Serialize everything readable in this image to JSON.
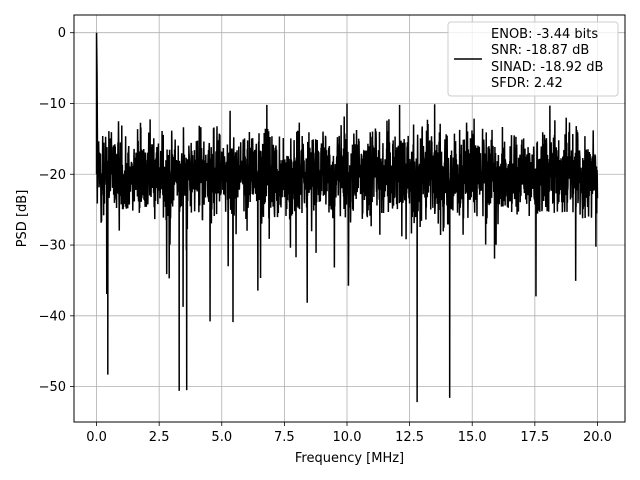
{
  "chart_data": {
    "type": "line",
    "title": "",
    "xlabel": "Frequency [MHz]",
    "ylabel": "PSD [dB]",
    "xlim": [
      -0.9,
      21.1
    ],
    "ylim": [
      -55,
      2.5
    ],
    "xticks": [
      0.0,
      2.5,
      5.0,
      7.5,
      10.0,
      12.5,
      15.0,
      17.5,
      20.0
    ],
    "xtick_labels": [
      "0.0",
      "2.5",
      "5.0",
      "7.5",
      "10.0",
      "12.5",
      "15.0",
      "17.5",
      "20.0"
    ],
    "yticks": [
      0,
      -10,
      -20,
      -30,
      -40,
      -50
    ],
    "ytick_labels": [
      "0",
      "−10",
      "−20",
      "−30",
      "−40",
      "−50"
    ],
    "grid": true,
    "legend_position": "top-right",
    "line_color": "#000000",
    "series": [
      {
        "legend_lines": [
          "ENOB: -3.44 bits",
          "SNR: -18.87 dB",
          "SINAD: -18.92 dB",
          "SFDR: 2.42"
        ],
        "x_range": [
          0,
          20
        ],
        "peak": {
          "x": 0.0,
          "y": 0.0
        },
        "noise_floor": -20,
        "upper_peaks": [
          {
            "x": 6.8,
            "y": -10.2
          },
          {
            "x": 10.0,
            "y": -10.0
          },
          {
            "x": 12.1,
            "y": -10.2
          },
          {
            "x": 13.5,
            "y": -10.1
          },
          {
            "x": 18.1,
            "y": -10.3
          }
        ],
        "deep_notches": [
          {
            "x": 0.45,
            "y": -48.3
          },
          {
            "x": 3.3,
            "y": -50.6
          },
          {
            "x": 3.6,
            "y": -50.5
          },
          {
            "x": 12.8,
            "y": -52.2
          },
          {
            "x": 14.1,
            "y": -51.6
          }
        ]
      }
    ]
  }
}
